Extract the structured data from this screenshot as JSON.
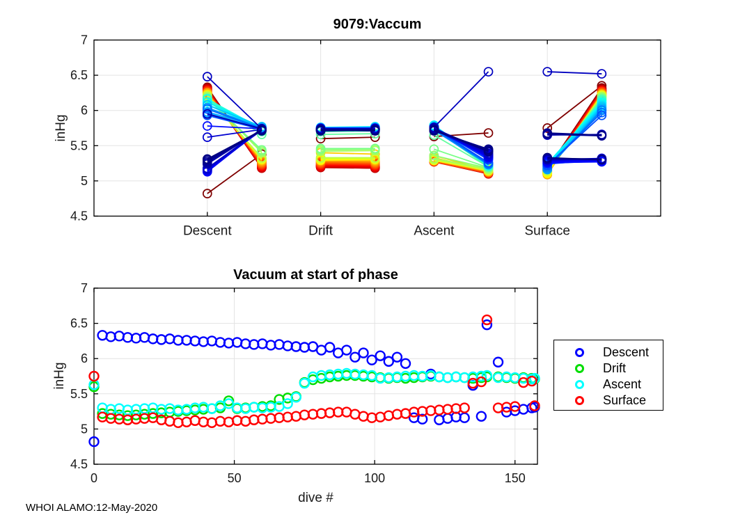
{
  "footer": "WHOI ALAMO:12-May-2020",
  "chart_data": [
    {
      "type": "line",
      "title": "9079:Vaccum",
      "ylabel": "inHg",
      "ylim": [
        4.5,
        7
      ],
      "yticks": [
        4.5,
        5,
        5.5,
        6,
        6.5,
        7
      ],
      "categories": [
        "Descent",
        "Drift",
        "Ascent",
        "Surface"
      ],
      "grid": true,
      "description": "Each dive is a line segment per phase: vacuum at phase start (left marker, at category tick) to phase end (right marker). Line color encodes dive number with reversed jet colormap (dive 0 = dark red, dive 157 = dark blue).",
      "phase_keys": [
        "de",
        "dr",
        "as",
        "su"
      ],
      "phase_end_offset": 0.48,
      "dives": [
        {
          "d": 0,
          "c": "#7F0000",
          "de": [
            4.82,
            5.38
          ],
          "dr": [
            5.6,
            5.62
          ],
          "as": [
            5.63,
            5.68
          ],
          "su": [
            5.75,
            6.35
          ]
        },
        {
          "d": 3,
          "c": "#8F0000",
          "de": [
            6.33,
            5.2
          ],
          "dr": [
            5.22,
            5.2
          ],
          "as": [
            5.3,
            5.14
          ],
          "su": [
            5.17,
            6.32
          ]
        },
        {
          "d": 6,
          "c": "#A00000",
          "de": [
            6.31,
            5.19
          ],
          "dr": [
            5.21,
            5.19
          ],
          "as": [
            5.28,
            5.12
          ],
          "su": [
            5.15,
            6.31
          ]
        },
        {
          "d": 9,
          "c": "#B20000",
          "de": [
            6.32,
            5.19
          ],
          "dr": [
            5.2,
            5.18
          ],
          "as": [
            5.29,
            5.11
          ],
          "su": [
            5.14,
            6.3
          ]
        },
        {
          "d": 12,
          "c": "#C30000",
          "de": [
            6.3,
            5.18
          ],
          "dr": [
            5.19,
            5.18
          ],
          "as": [
            5.27,
            5.1
          ],
          "su": [
            5.13,
            6.29
          ]
        },
        {
          "d": 15,
          "c": "#D40000",
          "de": [
            6.29,
            5.19
          ],
          "dr": [
            5.2,
            5.19
          ],
          "as": [
            5.28,
            5.1
          ],
          "su": [
            5.14,
            6.29
          ]
        },
        {
          "d": 18,
          "c": "#E60000",
          "de": [
            6.3,
            5.2
          ],
          "dr": [
            5.21,
            5.2
          ],
          "as": [
            5.29,
            5.11
          ],
          "su": [
            5.15,
            6.28
          ]
        },
        {
          "d": 21,
          "c": "#F70000",
          "de": [
            6.28,
            5.21
          ],
          "dr": [
            5.22,
            5.21
          ],
          "as": [
            5.3,
            5.12
          ],
          "su": [
            5.16,
            6.28
          ]
        },
        {
          "d": 24,
          "c": "#FF1400",
          "de": [
            6.27,
            5.22
          ],
          "dr": [
            5.23,
            5.22
          ],
          "as": [
            5.28,
            5.13
          ],
          "su": [
            5.13,
            6.27
          ]
        },
        {
          "d": 27,
          "c": "#FF2B00",
          "de": [
            6.28,
            5.23
          ],
          "dr": [
            5.24,
            5.23
          ],
          "as": [
            5.29,
            5.12
          ],
          "su": [
            5.11,
            6.27
          ]
        },
        {
          "d": 30,
          "c": "#FF4200",
          "de": [
            6.26,
            5.24
          ],
          "dr": [
            5.25,
            5.24
          ],
          "as": [
            5.27,
            5.11
          ],
          "su": [
            5.09,
            6.26
          ]
        },
        {
          "d": 33,
          "c": "#FF5900",
          "de": [
            6.26,
            5.25
          ],
          "dr": [
            5.26,
            5.25
          ],
          "as": [
            5.28,
            5.12
          ],
          "su": [
            5.1,
            6.25
          ]
        },
        {
          "d": 36,
          "c": "#FF7000",
          "de": [
            6.25,
            5.26
          ],
          "dr": [
            5.27,
            5.26
          ],
          "as": [
            5.3,
            5.13
          ],
          "su": [
            5.12,
            6.24
          ]
        },
        {
          "d": 39,
          "c": "#FF8700",
          "de": [
            6.24,
            5.27
          ],
          "dr": [
            5.28,
            5.27
          ],
          "as": [
            5.31,
            5.14
          ],
          "su": [
            5.1,
            6.24
          ]
        },
        {
          "d": 42,
          "c": "#FF9E00",
          "de": [
            6.25,
            5.28
          ],
          "dr": [
            5.29,
            5.28
          ],
          "as": [
            5.29,
            5.13
          ],
          "su": [
            5.09,
            6.23
          ]
        },
        {
          "d": 45,
          "c": "#FFB500",
          "de": [
            6.23,
            5.29
          ],
          "dr": [
            5.3,
            5.29
          ],
          "as": [
            5.33,
            5.14
          ],
          "su": [
            5.11,
            6.23
          ]
        },
        {
          "d": 48,
          "c": "#FFCC00",
          "de": [
            6.22,
            5.3
          ],
          "dr": [
            5.4,
            5.38
          ],
          "as": [
            5.36,
            5.15
          ],
          "su": [
            5.1,
            6.22
          ]
        },
        {
          "d": 51,
          "c": "#FFE300",
          "de": [
            6.23,
            5.3
          ],
          "dr": [
            5.29,
            5.3
          ],
          "as": [
            5.3,
            5.14
          ],
          "su": [
            5.12,
            6.22
          ]
        },
        {
          "d": 54,
          "c": "#FFFA00",
          "de": [
            6.21,
            5.31
          ],
          "dr": [
            5.3,
            5.31
          ],
          "as": [
            5.29,
            5.15
          ],
          "su": [
            5.11,
            6.21
          ]
        },
        {
          "d": 57,
          "c": "#EBFF14",
          "de": [
            6.2,
            5.31
          ],
          "dr": [
            5.31,
            5.31
          ],
          "as": [
            5.31,
            5.16
          ],
          "su": [
            5.13,
            6.21
          ]
        },
        {
          "d": 60,
          "c": "#D4FF2B",
          "de": [
            6.21,
            5.32
          ],
          "dr": [
            5.32,
            5.32
          ],
          "as": [
            5.3,
            5.15
          ],
          "su": [
            5.14,
            6.2
          ]
        },
        {
          "d": 63,
          "c": "#BDFF42",
          "de": [
            6.19,
            5.33
          ],
          "dr": [
            5.33,
            5.33
          ],
          "as": [
            5.31,
            5.16
          ],
          "su": [
            5.15,
            6.2
          ]
        },
        {
          "d": 66,
          "c": "#A6FF59",
          "de": [
            6.2,
            5.4
          ],
          "dr": [
            5.42,
            5.43
          ],
          "as": [
            5.32,
            5.17
          ],
          "su": [
            5.16,
            6.19
          ]
        },
        {
          "d": 69,
          "c": "#8FFF70",
          "de": [
            6.18,
            5.42
          ],
          "dr": [
            5.44,
            5.45
          ],
          "as": [
            5.36,
            5.18
          ],
          "su": [
            5.17,
            6.18
          ]
        },
        {
          "d": 72,
          "c": "#78FF87",
          "de": [
            6.17,
            5.44
          ],
          "dr": [
            5.46,
            5.46
          ],
          "as": [
            5.45,
            5.19
          ],
          "su": [
            5.18,
            6.17
          ]
        },
        {
          "d": 75,
          "c": "#61FF9E",
          "de": [
            6.16,
            5.66
          ],
          "dr": [
            5.66,
            5.67
          ],
          "as": [
            5.65,
            5.2
          ],
          "su": [
            5.2,
            6.16
          ]
        },
        {
          "d": 78,
          "c": "#4AFFB5",
          "de": [
            6.17,
            5.7
          ],
          "dr": [
            5.7,
            5.71
          ],
          "as": [
            5.74,
            5.2
          ],
          "su": [
            5.21,
            6.15
          ]
        },
        {
          "d": 81,
          "c": "#33FFCC",
          "de": [
            6.12,
            5.72
          ],
          "dr": [
            5.72,
            5.73
          ],
          "as": [
            5.76,
            5.21
          ],
          "su": [
            5.22,
            6.14
          ]
        },
        {
          "d": 84,
          "c": "#1CFFE3",
          "de": [
            6.16,
            5.74
          ],
          "dr": [
            5.74,
            5.74
          ],
          "as": [
            5.77,
            5.22
          ],
          "su": [
            5.23,
            6.12
          ]
        },
        {
          "d": 87,
          "c": "#05FFFA",
          "de": [
            6.08,
            5.75
          ],
          "dr": [
            5.75,
            5.75
          ],
          "as": [
            5.78,
            5.22
          ],
          "su": [
            5.24,
            6.11
          ]
        },
        {
          "d": 90,
          "c": "#00F2FF",
          "de": [
            6.12,
            5.76
          ],
          "dr": [
            5.76,
            5.76
          ],
          "as": [
            5.79,
            5.23
          ],
          "su": [
            5.24,
            6.09
          ]
        },
        {
          "d": 93,
          "c": "#00DBFF",
          "de": [
            6.02,
            5.77
          ],
          "dr": [
            5.76,
            5.77
          ],
          "as": [
            5.78,
            5.23
          ],
          "su": [
            5.21,
            6.07
          ]
        },
        {
          "d": 96,
          "c": "#00C4FF",
          "de": [
            6.08,
            5.77
          ],
          "dr": [
            5.75,
            5.76
          ],
          "as": [
            5.77,
            5.24
          ],
          "su": [
            5.18,
            6.05
          ]
        },
        {
          "d": 99,
          "c": "#00ADFF",
          "de": [
            5.98,
            5.76
          ],
          "dr": [
            5.74,
            5.75
          ],
          "as": [
            5.76,
            5.24
          ],
          "su": [
            5.16,
            6.03
          ]
        },
        {
          "d": 102,
          "c": "#0096FF",
          "de": [
            6.04,
            5.75
          ],
          "dr": [
            5.73,
            5.74
          ],
          "as": [
            5.72,
            5.23
          ],
          "su": [
            5.17,
            6.01
          ]
        },
        {
          "d": 105,
          "c": "#007FFF",
          "de": [
            5.96,
            5.74
          ],
          "dr": [
            5.72,
            5.73
          ],
          "as": [
            5.73,
            5.24
          ],
          "su": [
            5.19,
            6.0
          ]
        },
        {
          "d": 108,
          "c": "#0068FF",
          "de": [
            6.02,
            5.74
          ],
          "dr": [
            5.73,
            5.73
          ],
          "as": [
            5.74,
            5.25
          ],
          "su": [
            5.21,
            5.97
          ]
        },
        {
          "d": 111,
          "c": "#0051FF",
          "de": [
            5.93,
            5.73
          ],
          "dr": [
            5.72,
            5.72
          ],
          "as": [
            5.75,
            5.26
          ],
          "su": [
            5.22,
            5.93
          ]
        },
        {
          "d": 114,
          "c": "#003AFF",
          "de": [
            5.16,
            5.72
          ],
          "dr": [
            5.73,
            5.73
          ],
          "as": [
            5.76,
            5.3
          ],
          "su": [
            5.24,
            5.3
          ]
        },
        {
          "d": 117,
          "c": "#0023FF",
          "de": [
            5.14,
            5.73
          ],
          "dr": [
            5.74,
            5.74
          ],
          "as": [
            5.75,
            5.32
          ],
          "su": [
            5.25,
            5.28
          ]
        },
        {
          "d": 120,
          "c": "#000CFF",
          "de": [
            5.78,
            5.74
          ],
          "dr": [
            5.75,
            5.75
          ],
          "as": [
            5.76,
            5.33
          ],
          "su": [
            5.26,
            5.27
          ]
        },
        {
          "d": 123,
          "c": "#0000FA",
          "de": [
            5.13,
            5.74
          ],
          "dr": [
            5.74,
            5.74
          ],
          "as": [
            5.74,
            5.34
          ],
          "su": [
            5.27,
            5.29
          ]
        },
        {
          "d": 126,
          "c": "#0000F0",
          "de": [
            5.15,
            5.73
          ],
          "dr": [
            5.73,
            5.74
          ],
          "as": [
            5.73,
            5.35
          ],
          "su": [
            5.28,
            5.3
          ]
        },
        {
          "d": 129,
          "c": "#0000E5",
          "de": [
            5.17,
            5.73
          ],
          "dr": [
            5.74,
            5.73
          ],
          "as": [
            5.74,
            5.36
          ],
          "su": [
            5.29,
            5.31
          ]
        },
        {
          "d": 132,
          "c": "#0000DB",
          "de": [
            5.16,
            5.72
          ],
          "dr": [
            5.73,
            5.72
          ],
          "as": [
            5.73,
            5.37
          ],
          "su": [
            5.3,
            5.32
          ]
        },
        {
          "d": 135,
          "c": "#0000D0",
          "de": [
            5.62,
            5.73
          ],
          "dr": [
            5.72,
            5.73
          ],
          "as": [
            5.74,
            5.38
          ],
          "su": [
            5.65,
            5.66
          ]
        },
        {
          "d": 138,
          "c": "#0000C6",
          "de": [
            5.18,
            5.74
          ],
          "dr": [
            5.73,
            5.74
          ],
          "as": [
            5.75,
            5.39
          ],
          "su": [
            5.67,
            5.65
          ]
        },
        {
          "d": 140,
          "c": "#0000BF",
          "de": [
            6.48,
            5.74
          ],
          "dr": [
            5.74,
            5.74
          ],
          "as": [
            5.76,
            6.55
          ],
          "su": [
            6.55,
            6.52
          ]
        },
        {
          "d": 144,
          "c": "#0000B1",
          "de": [
            5.95,
            5.74
          ],
          "dr": [
            5.74,
            5.74
          ],
          "as": [
            5.73,
            5.41
          ],
          "su": [
            5.3,
            5.31
          ]
        },
        {
          "d": 147,
          "c": "#0000A7",
          "de": [
            5.24,
            5.73
          ],
          "dr": [
            5.73,
            5.73
          ],
          "as": [
            5.74,
            5.42
          ],
          "su": [
            5.31,
            5.3
          ]
        },
        {
          "d": 150,
          "c": "#00009C",
          "de": [
            5.26,
            5.72
          ],
          "dr": [
            5.72,
            5.72
          ],
          "as": [
            5.73,
            5.43
          ],
          "su": [
            5.32,
            5.31
          ]
        },
        {
          "d": 153,
          "c": "#000092",
          "de": [
            5.28,
            5.72
          ],
          "dr": [
            5.73,
            5.72
          ],
          "as": [
            5.72,
            5.44
          ],
          "su": [
            5.66,
            5.64
          ]
        },
        {
          "d": 156,
          "c": "#000087",
          "de": [
            5.3,
            5.71
          ],
          "dr": [
            5.72,
            5.71
          ],
          "as": [
            5.71,
            5.45
          ],
          "su": [
            5.68,
            5.65
          ]
        },
        {
          "d": 157,
          "c": "#000080",
          "de": [
            5.31,
            5.72
          ],
          "dr": [
            5.71,
            5.72
          ],
          "as": [
            5.72,
            5.42
          ],
          "su": [
            5.33,
            5.3
          ]
        }
      ]
    },
    {
      "type": "scatter",
      "title": "Vacuum at start of phase",
      "xlabel": "dive #",
      "ylabel": "inHg",
      "xlim": [
        0,
        158
      ],
      "xticks": [
        0,
        50,
        100,
        150
      ],
      "ylim": [
        4.5,
        7
      ],
      "yticks": [
        4.5,
        5,
        5.5,
        6,
        6.5,
        7
      ],
      "grid": true,
      "legend_position": "right-outside",
      "source": "y values are the phase start values (index 0) of chart_data.0.dives, x is dive number d",
      "series": [
        {
          "name": "Descent",
          "key": "de",
          "color": "#0000FF"
        },
        {
          "name": "Drift",
          "key": "dr",
          "color": "#00DD00"
        },
        {
          "name": "Ascent",
          "key": "as",
          "color": "#00FFFF"
        },
        {
          "name": "Surface",
          "key": "su",
          "color": "#FF0000"
        }
      ]
    }
  ]
}
